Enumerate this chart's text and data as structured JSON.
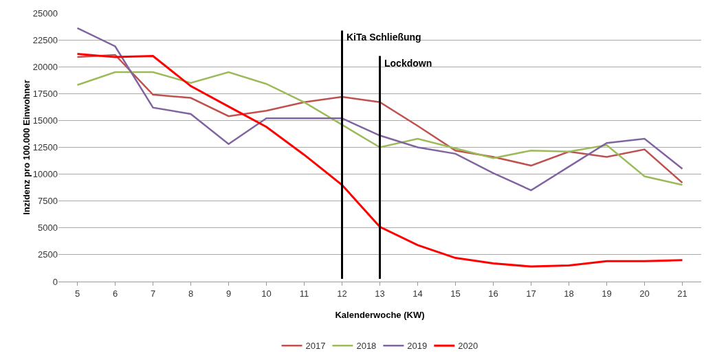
{
  "chart_data": {
    "type": "line",
    "xlabel": "Kalenderwoche (KW)",
    "ylabel": "Inzidenz pro 100.000 Einwohner",
    "x": [
      5,
      6,
      7,
      8,
      9,
      10,
      11,
      12,
      13,
      14,
      15,
      16,
      17,
      18,
      19,
      20,
      21
    ],
    "xlim": [
      4.5,
      21.5
    ],
    "xticks": [
      5,
      6,
      7,
      8,
      9,
      10,
      11,
      12,
      13,
      14,
      15,
      16,
      17,
      18,
      19,
      20,
      21
    ],
    "ylim": [
      0,
      25000
    ],
    "yticks": [
      0,
      2500,
      5000,
      7500,
      10000,
      12500,
      15000,
      17500,
      20000,
      22500,
      25000
    ],
    "grid": "y",
    "legend": "bottom",
    "marker": "none",
    "line_style": "solid",
    "series": [
      {
        "name": "2017",
        "color": "#c0504d",
        "values": [
          20900,
          21100,
          17400,
          17100,
          15400,
          15900,
          16700,
          17200,
          16700,
          14500,
          12200,
          11600,
          10800,
          12100,
          11600,
          12300,
          9200
        ]
      },
      {
        "name": "2018",
        "color": "#9bbb59",
        "values": [
          18300,
          19500,
          19500,
          18500,
          19500,
          18400,
          16700,
          14600,
          12500,
          13300,
          12400,
          11500,
          12200,
          12100,
          12700,
          9800,
          9000
        ]
      },
      {
        "name": "2019",
        "color": "#8064a2",
        "values": [
          23600,
          21900,
          16200,
          15600,
          12800,
          15200,
          15200,
          15200,
          13600,
          12500,
          11900,
          10100,
          8500,
          10700,
          12900,
          13300,
          10500
        ]
      },
      {
        "name": "2020",
        "color": "#ff0000",
        "values": [
          21200,
          20900,
          21000,
          18200,
          16300,
          14400,
          11800,
          9000,
          5100,
          3400,
          2200,
          1700,
          1400,
          1500,
          1900,
          1900,
          2000
        ]
      }
    ],
    "ref_lines": [
      {
        "axis": "x",
        "value": 12,
        "label": "KiTa Schließung",
        "color": "#000000"
      },
      {
        "axis": "x",
        "value": 13,
        "label": "Lockdown",
        "color": "#000000"
      }
    ]
  }
}
